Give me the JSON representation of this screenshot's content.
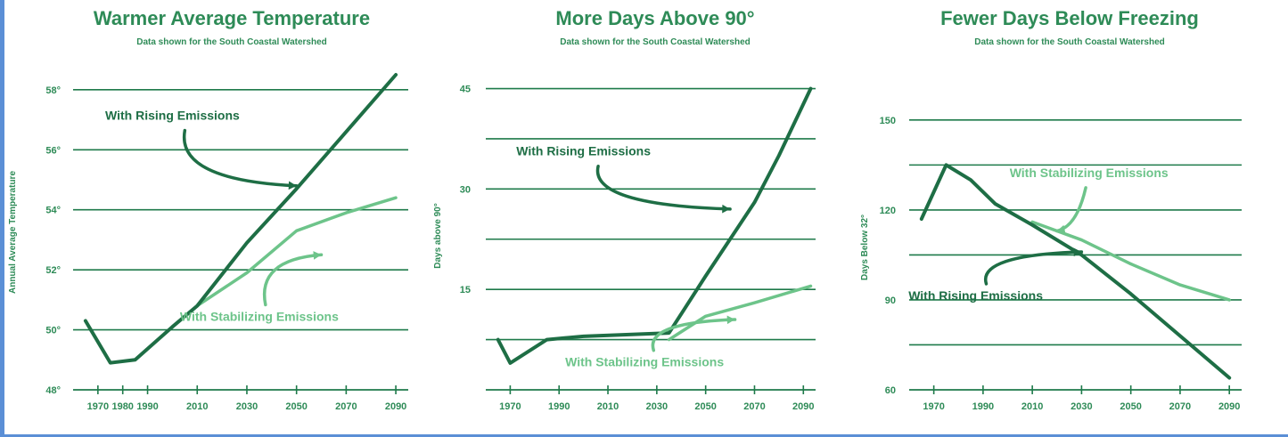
{
  "colors": {
    "text": "#2e8b57",
    "grid": "#1e7a4a",
    "rising": "#1e6e45",
    "stabilizing": "#6dc48a",
    "frame": "#5b8fd6"
  },
  "chart_data": [
    {
      "type": "line",
      "title": "Warmer Average Temperature",
      "subtitle": "Data shown for the South Coastal Watershed",
      "ylabel": "Annual Average Temperature",
      "xlabel": "",
      "xlim": [
        1960,
        2095
      ],
      "ylim": [
        48,
        58.5
      ],
      "xticks": [
        1970,
        1980,
        1990,
        2010,
        2030,
        2050,
        2070,
        2090
      ],
      "xtick_labels": [
        "1970",
        "1980",
        "1990",
        "2010",
        "2030",
        "2050",
        "2070",
        "2090"
      ],
      "yticks": [
        48,
        50,
        52,
        54,
        56,
        58
      ],
      "ytick_labels": [
        "48°",
        "50°",
        "52°",
        "54°",
        "56°",
        "58°"
      ],
      "gridlines": [
        50,
        52,
        54,
        56,
        58
      ],
      "series": [
        {
          "name": "With Rising Emissions",
          "style": "rising",
          "x": [
            1965,
            1975,
            1985,
            2000,
            2010,
            2030,
            2050,
            2070,
            2090
          ],
          "y": [
            50.3,
            48.9,
            49.0,
            50.1,
            50.8,
            52.9,
            54.7,
            56.6,
            58.5
          ]
        },
        {
          "name": "With Stabilizing Emissions",
          "style": "stabilizing",
          "x": [
            2010,
            2030,
            2050,
            2070,
            2090
          ],
          "y": [
            50.8,
            51.9,
            53.3,
            53.9,
            54.4
          ]
        }
      ],
      "annotations": [
        {
          "text": "With Rising Emissions",
          "series": "rising",
          "tx": 2000,
          "ty": 57.0,
          "ax": 2050,
          "ay": 54.8
        },
        {
          "text": "With Stabilizing Emissions",
          "series": "stabilizing",
          "tx": 2035,
          "ty": 50.3,
          "ax": 2060,
          "ay": 52.5
        }
      ]
    },
    {
      "type": "line",
      "title": "More Days Above 90°",
      "subtitle": "Data shown for the South Coastal Watershed",
      "ylabel": "Days above 90°",
      "xlabel": "",
      "xlim": [
        1960,
        2095
      ],
      "ylim": [
        0,
        46
      ],
      "xticks": [
        1970,
        1990,
        2010,
        2030,
        2050,
        2070,
        2090
      ],
      "xtick_labels": [
        "1970",
        "1990",
        "2010",
        "2030",
        "2050",
        "2070",
        "2090"
      ],
      "yticks": [
        15,
        30,
        45
      ],
      "ytick_labels": [
        "15",
        "30",
        "45"
      ],
      "gridlines": [
        7.5,
        15,
        22.5,
        30,
        37.5,
        45
      ],
      "series": [
        {
          "name": "With Rising Emissions",
          "style": "rising",
          "x": [
            1965,
            1970,
            1985,
            2000,
            2035,
            2050,
            2070,
            2080,
            2093
          ],
          "y": [
            7.5,
            4.0,
            7.5,
            8.0,
            8.5,
            17.0,
            28.0,
            35.0,
            45.0
          ]
        },
        {
          "name": "With Stabilizing Emissions",
          "style": "stabilizing",
          "x": [
            2035,
            2050,
            2070,
            2093
          ],
          "y": [
            7.5,
            11.0,
            13.0,
            15.5
          ]
        }
      ],
      "annotations": [
        {
          "text": "With Rising Emissions",
          "series": "rising",
          "tx": 2000,
          "ty": 35.0,
          "ax": 2060,
          "ay": 27.0
        },
        {
          "text": "With Stabilizing Emissions",
          "series": "stabilizing",
          "tx": 2025,
          "ty": 3.5,
          "ax": 2062,
          "ay": 10.5
        }
      ]
    },
    {
      "type": "line",
      "title": "Fewer Days Below Freezing",
      "subtitle": "Data shown for the South Coastal Watershed",
      "ylabel": "Days Below 32°",
      "xlabel": "",
      "xlim": [
        1960,
        2095
      ],
      "ylim": [
        60,
        155
      ],
      "xticks": [
        1970,
        1990,
        2010,
        2030,
        2050,
        2070,
        2090
      ],
      "xtick_labels": [
        "1970",
        "1990",
        "2010",
        "2030",
        "2050",
        "2070",
        "2090"
      ],
      "yticks": [
        60,
        90,
        120,
        150
      ],
      "ytick_labels": [
        "60",
        "90",
        "120",
        "150"
      ],
      "gridlines": [
        75,
        90,
        105,
        120,
        135,
        150
      ],
      "series": [
        {
          "name": "With Rising Emissions",
          "style": "rising",
          "x": [
            1965,
            1975,
            1985,
            1995,
            2010,
            2030,
            2050,
            2070,
            2090
          ],
          "y": [
            117,
            135,
            130,
            122,
            115,
            105,
            92,
            78,
            64
          ]
        },
        {
          "name": "With Stabilizing Emissions",
          "style": "stabilizing",
          "x": [
            2010,
            2030,
            2050,
            2070,
            2090
          ],
          "y": [
            116,
            110,
            102,
            95,
            90
          ]
        }
      ],
      "annotations": [
        {
          "text": "With Stabilizing Emissions",
          "series": "stabilizing",
          "tx": 2033,
          "ty": 131,
          "ax": 2020,
          "ay": 113
        },
        {
          "text": "With Rising Emissions",
          "series": "rising",
          "tx": 1987,
          "ty": 90,
          "ax": 2030,
          "ay": 106
        }
      ]
    }
  ]
}
